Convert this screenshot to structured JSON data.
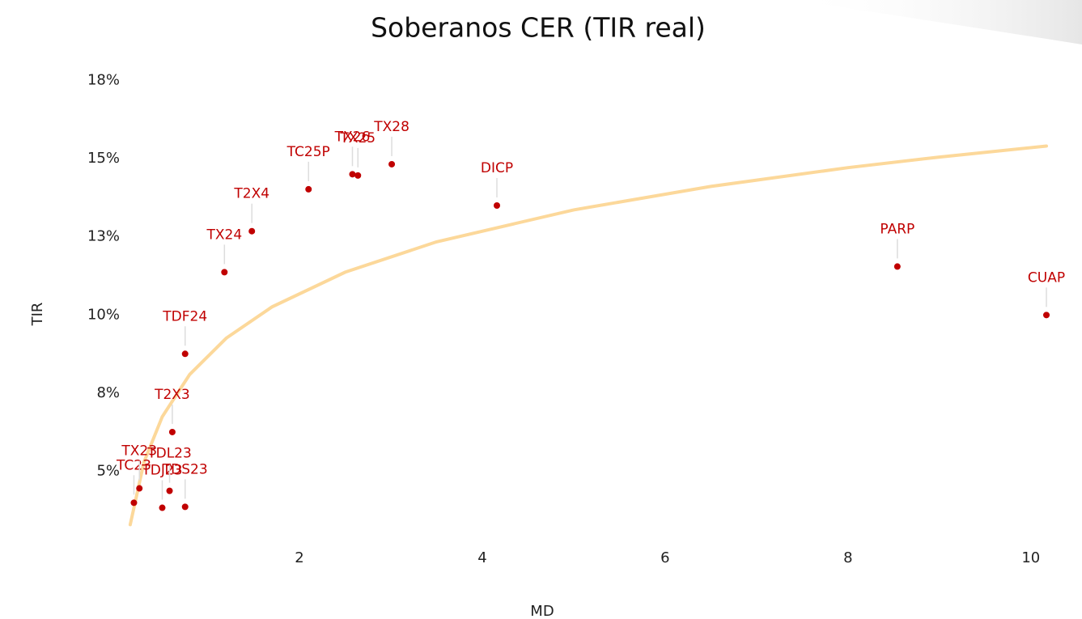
{
  "chart_data": {
    "type": "scatter",
    "title": "Soberanos CER (TIR real)",
    "x_label": "MD",
    "y_label": "TIR",
    "series": [
      {
        "color": "#c00000",
        "labels": [
          "TC23",
          "TX23",
          "TDJ23",
          "TDL23",
          "TDS23",
          "T2X3",
          "TDF24",
          "TX24",
          "T2X4",
          "TC25P",
          "TX25",
          "TX26",
          "TX28",
          "DICP",
          "PARP",
          "CUAP"
        ],
        "x": [
          0.19,
          0.25,
          0.5,
          0.58,
          0.75,
          0.61,
          0.75,
          1.18,
          1.48,
          2.1,
          2.64,
          2.58,
          3.01,
          4.16,
          8.54,
          10.17
        ],
        "values": [
          4.0,
          4.46,
          3.84,
          4.38,
          3.87,
          6.26,
          8.76,
          11.37,
          12.68,
          14.02,
          14.46,
          14.5,
          14.82,
          13.5,
          11.55,
          10.0
        ]
      }
    ],
    "trend": {
      "color": "#fcd89a",
      "x": [
        0.15,
        0.3,
        0.5,
        0.8,
        1.2,
        1.7,
        2.5,
        3.5,
        5,
        6.5,
        8,
        9,
        10.17
      ],
      "values": [
        3.3,
        5.3,
        6.75,
        8.1,
        9.26,
        10.26,
        11.37,
        12.34,
        13.36,
        14.11,
        14.71,
        15.05,
        15.4
      ]
    },
    "xlim": [
      0,
      10.4
    ],
    "ylim": [
      3,
      18
    ],
    "xticks": [
      2,
      4,
      6,
      8,
      10
    ],
    "yticks": [
      {
        "value": 5,
        "label": "5%"
      },
      {
        "value": 7.5,
        "label": "8%"
      },
      {
        "value": 10,
        "label": "10%"
      },
      {
        "value": 12.5,
        "label": "13%"
      },
      {
        "value": 15,
        "label": "15%"
      },
      {
        "value": 17.5,
        "label": "18%"
      }
    ],
    "grid": false
  }
}
